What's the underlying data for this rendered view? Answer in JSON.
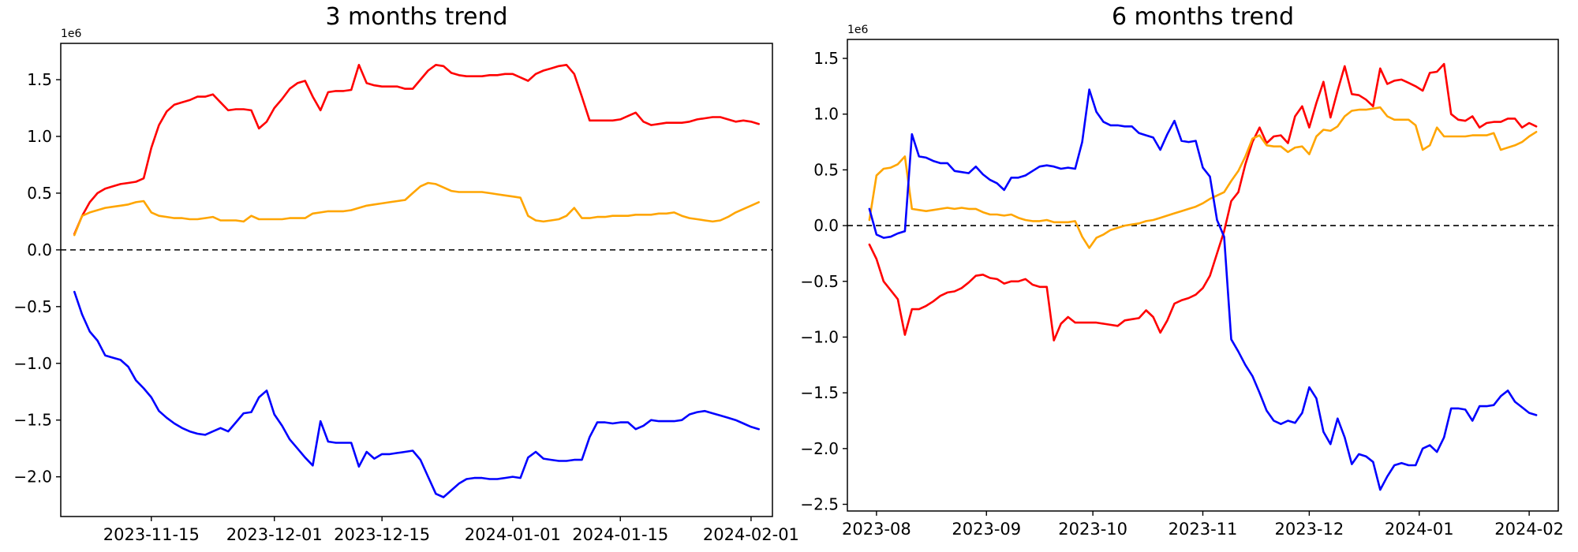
{
  "figure": {
    "background": "#ffffff",
    "frame_color": "#000000"
  },
  "chart_data": [
    {
      "type": "line",
      "title": "3 months trend",
      "y_offset_label": "1e6",
      "xlabel": "",
      "ylabel": "",
      "grid": false,
      "legend": "none",
      "x_start_date": "2023-11-05",
      "x_max_day": 89,
      "x_tick_labels": [
        "2023-11-15",
        "2023-12-01",
        "2023-12-15",
        "2024-01-01",
        "2024-01-15",
        "2024-02-01"
      ],
      "x_tick_days": [
        10,
        26,
        40,
        57,
        71,
        88
      ],
      "x_margin_frac": 0.02,
      "ylim": [
        -2.35,
        1.82
      ],
      "y_ticks": [
        1.5,
        1.0,
        0.5,
        0.0,
        -0.5,
        -1.0,
        -1.5,
        -2.0
      ],
      "zero_line": {
        "value": 0,
        "style": "dashed",
        "color": "#000000"
      },
      "series": [
        {
          "name": "red",
          "color": "#ff0000",
          "values": [
            0.14,
            0.3,
            0.42,
            0.5,
            0.54,
            0.56,
            0.58,
            0.59,
            0.6,
            0.63,
            0.9,
            1.1,
            1.22,
            1.28,
            1.3,
            1.32,
            1.35,
            1.35,
            1.37,
            1.3,
            1.23,
            1.24,
            1.24,
            1.23,
            1.07,
            1.13,
            1.25,
            1.33,
            1.42,
            1.47,
            1.49,
            1.35,
            1.23,
            1.39,
            1.4,
            1.4,
            1.41,
            1.63,
            1.47,
            1.45,
            1.44,
            1.44,
            1.44,
            1.42,
            1.42,
            1.5,
            1.58,
            1.63,
            1.62,
            1.56,
            1.54,
            1.53,
            1.53,
            1.53,
            1.54,
            1.54,
            1.55,
            1.55,
            1.52,
            1.49,
            1.55,
            1.58,
            1.6,
            1.62,
            1.63,
            1.55,
            1.35,
            1.14,
            1.14,
            1.14,
            1.14,
            1.15,
            1.18,
            1.21,
            1.13,
            1.1,
            1.11,
            1.12,
            1.12,
            1.12,
            1.13,
            1.15,
            1.16,
            1.17,
            1.17,
            1.15,
            1.13,
            1.14,
            1.13,
            1.11
          ]
        },
        {
          "name": "orange",
          "color": "#ffa500",
          "values": [
            0.13,
            0.3,
            0.33,
            0.35,
            0.37,
            0.38,
            0.39,
            0.4,
            0.42,
            0.43,
            0.33,
            0.3,
            0.29,
            0.28,
            0.28,
            0.27,
            0.27,
            0.28,
            0.29,
            0.26,
            0.26,
            0.26,
            0.25,
            0.3,
            0.27,
            0.27,
            0.27,
            0.27,
            0.28,
            0.28,
            0.28,
            0.32,
            0.33,
            0.34,
            0.34,
            0.34,
            0.35,
            0.37,
            0.39,
            0.4,
            0.41,
            0.42,
            0.43,
            0.44,
            0.5,
            0.56,
            0.59,
            0.58,
            0.55,
            0.52,
            0.51,
            0.51,
            0.51,
            0.51,
            0.5,
            0.49,
            0.48,
            0.47,
            0.46,
            0.3,
            0.26,
            0.25,
            0.26,
            0.27,
            0.3,
            0.37,
            0.28,
            0.28,
            0.29,
            0.29,
            0.3,
            0.3,
            0.3,
            0.31,
            0.31,
            0.31,
            0.32,
            0.32,
            0.33,
            0.3,
            0.28,
            0.27,
            0.26,
            0.25,
            0.26,
            0.29,
            0.33,
            0.36,
            0.39,
            0.42
          ]
        },
        {
          "name": "blue",
          "color": "#0000ff",
          "values": [
            -0.37,
            -0.57,
            -0.72,
            -0.8,
            -0.93,
            -0.95,
            -0.97,
            -1.03,
            -1.15,
            -1.22,
            -1.3,
            -1.42,
            -1.48,
            -1.53,
            -1.57,
            -1.6,
            -1.62,
            -1.63,
            -1.6,
            -1.57,
            -1.6,
            -1.52,
            -1.44,
            -1.43,
            -1.3,
            -1.24,
            -1.45,
            -1.55,
            -1.67,
            -1.75,
            -1.83,
            -1.9,
            -1.51,
            -1.69,
            -1.7,
            -1.7,
            -1.7,
            -1.91,
            -1.78,
            -1.84,
            -1.8,
            -1.8,
            -1.79,
            -1.78,
            -1.77,
            -1.85,
            -2.0,
            -2.15,
            -2.18,
            -2.12,
            -2.06,
            -2.02,
            -2.01,
            -2.01,
            -2.02,
            -2.02,
            -2.01,
            -2.0,
            -2.01,
            -1.83,
            -1.78,
            -1.84,
            -1.85,
            -1.86,
            -1.86,
            -1.85,
            -1.85,
            -1.65,
            -1.52,
            -1.52,
            -1.53,
            -1.52,
            -1.52,
            -1.58,
            -1.55,
            -1.5,
            -1.51,
            -1.51,
            -1.51,
            -1.5,
            -1.45,
            -1.43,
            -1.42,
            -1.44,
            -1.46,
            -1.48,
            -1.5,
            -1.53,
            -1.56,
            -1.58
          ]
        }
      ]
    },
    {
      "type": "line",
      "title": "6 months trend",
      "y_offset_label": "1e6",
      "xlabel": "",
      "ylabel": "",
      "grid": false,
      "legend": "none",
      "x_start_date": "2023-07-30",
      "x_max_day": 188,
      "x_tick_labels": [
        "2023-08",
        "2023-09",
        "2023-10",
        "2023-11",
        "2023-12",
        "2024-01",
        "2024-02"
      ],
      "x_tick_days": [
        2,
        33,
        63,
        94,
        124,
        155,
        186
      ],
      "x_margin_frac": 0.033,
      "ylim": [
        -2.56,
        1.67
      ],
      "y_ticks": [
        1.5,
        1.0,
        0.5,
        0.0,
        -0.5,
        -1.0,
        -1.5,
        -2.0,
        -2.5
      ],
      "zero_line": {
        "value": 0,
        "style": "dashed",
        "color": "#000000"
      },
      "series": [
        {
          "name": "red",
          "color": "#ff0000",
          "values": [
            -0.17,
            -0.3,
            -0.5,
            -0.58,
            -0.66,
            -0.98,
            -0.75,
            -0.75,
            -0.72,
            -0.68,
            -0.63,
            -0.6,
            -0.59,
            -0.56,
            -0.51,
            -0.45,
            -0.44,
            -0.47,
            -0.48,
            -0.52,
            -0.5,
            -0.5,
            -0.48,
            -0.53,
            -0.55,
            -0.55,
            -1.03,
            -0.88,
            -0.82,
            -0.87,
            -0.87,
            -0.87,
            -0.87,
            -0.88,
            -0.89,
            -0.9,
            -0.85,
            -0.84,
            -0.83,
            -0.76,
            -0.82,
            -0.96,
            -0.85,
            -0.7,
            -0.67,
            -0.65,
            -0.62,
            -0.56,
            -0.45,
            -0.25,
            -0.05,
            0.22,
            0.3,
            0.55,
            0.75,
            0.88,
            0.74,
            0.8,
            0.81,
            0.74,
            0.98,
            1.07,
            0.88,
            1.1,
            1.29,
            0.97,
            1.21,
            1.43,
            1.18,
            1.17,
            1.13,
            1.07,
            1.41,
            1.27,
            1.3,
            1.31,
            1.28,
            1.25,
            1.21,
            1.37,
            1.38,
            1.45,
            1.0,
            0.95,
            0.94,
            0.98,
            0.88,
            0.92,
            0.93,
            0.93,
            0.96,
            0.96,
            0.88,
            0.92,
            0.89
          ]
        },
        {
          "name": "orange",
          "color": "#ffa500",
          "values": [
            0.05,
            0.45,
            0.51,
            0.52,
            0.55,
            0.62,
            0.15,
            0.14,
            0.13,
            0.14,
            0.15,
            0.16,
            0.15,
            0.16,
            0.15,
            0.15,
            0.12,
            0.1,
            0.1,
            0.09,
            0.1,
            0.07,
            0.05,
            0.04,
            0.04,
            0.05,
            0.03,
            0.03,
            0.03,
            0.04,
            -0.1,
            -0.2,
            -0.11,
            -0.08,
            -0.04,
            -0.02,
            0.0,
            0.01,
            0.02,
            0.04,
            0.05,
            0.07,
            0.09,
            0.11,
            0.13,
            0.15,
            0.17,
            0.2,
            0.24,
            0.27,
            0.3,
            0.4,
            0.49,
            0.62,
            0.78,
            0.81,
            0.72,
            0.71,
            0.71,
            0.66,
            0.7,
            0.71,
            0.64,
            0.8,
            0.86,
            0.85,
            0.89,
            0.98,
            1.03,
            1.04,
            1.04,
            1.05,
            1.06,
            0.98,
            0.95,
            0.95,
            0.95,
            0.9,
            0.68,
            0.72,
            0.88,
            0.8,
            0.8,
            0.8,
            0.8,
            0.81,
            0.81,
            0.81,
            0.83,
            0.68,
            0.7,
            0.72,
            0.75,
            0.8,
            0.84
          ]
        },
        {
          "name": "blue",
          "color": "#0000ff",
          "values": [
            0.15,
            -0.08,
            -0.11,
            -0.1,
            -0.07,
            -0.05,
            0.82,
            0.62,
            0.61,
            0.58,
            0.56,
            0.56,
            0.49,
            0.48,
            0.47,
            0.53,
            0.46,
            0.41,
            0.38,
            0.32,
            0.43,
            0.43,
            0.45,
            0.49,
            0.53,
            0.54,
            0.53,
            0.51,
            0.52,
            0.51,
            0.75,
            1.22,
            1.02,
            0.93,
            0.9,
            0.9,
            0.89,
            0.89,
            0.83,
            0.81,
            0.79,
            0.68,
            0.82,
            0.94,
            0.76,
            0.75,
            0.76,
            0.52,
            0.44,
            0.05,
            -0.1,
            -1.02,
            -1.13,
            -1.25,
            -1.35,
            -1.5,
            -1.66,
            -1.75,
            -1.78,
            -1.75,
            -1.77,
            -1.68,
            -1.45,
            -1.55,
            -1.85,
            -1.96,
            -1.73,
            -1.9,
            -2.14,
            -2.05,
            -2.07,
            -2.12,
            -2.37,
            -2.25,
            -2.15,
            -2.13,
            -2.15,
            -2.15,
            -2.0,
            -1.97,
            -2.03,
            -1.9,
            -1.64,
            -1.64,
            -1.65,
            -1.75,
            -1.62,
            -1.62,
            -1.61,
            -1.53,
            -1.48,
            -1.58,
            -1.63,
            -1.68,
            -1.7
          ]
        }
      ]
    }
  ]
}
